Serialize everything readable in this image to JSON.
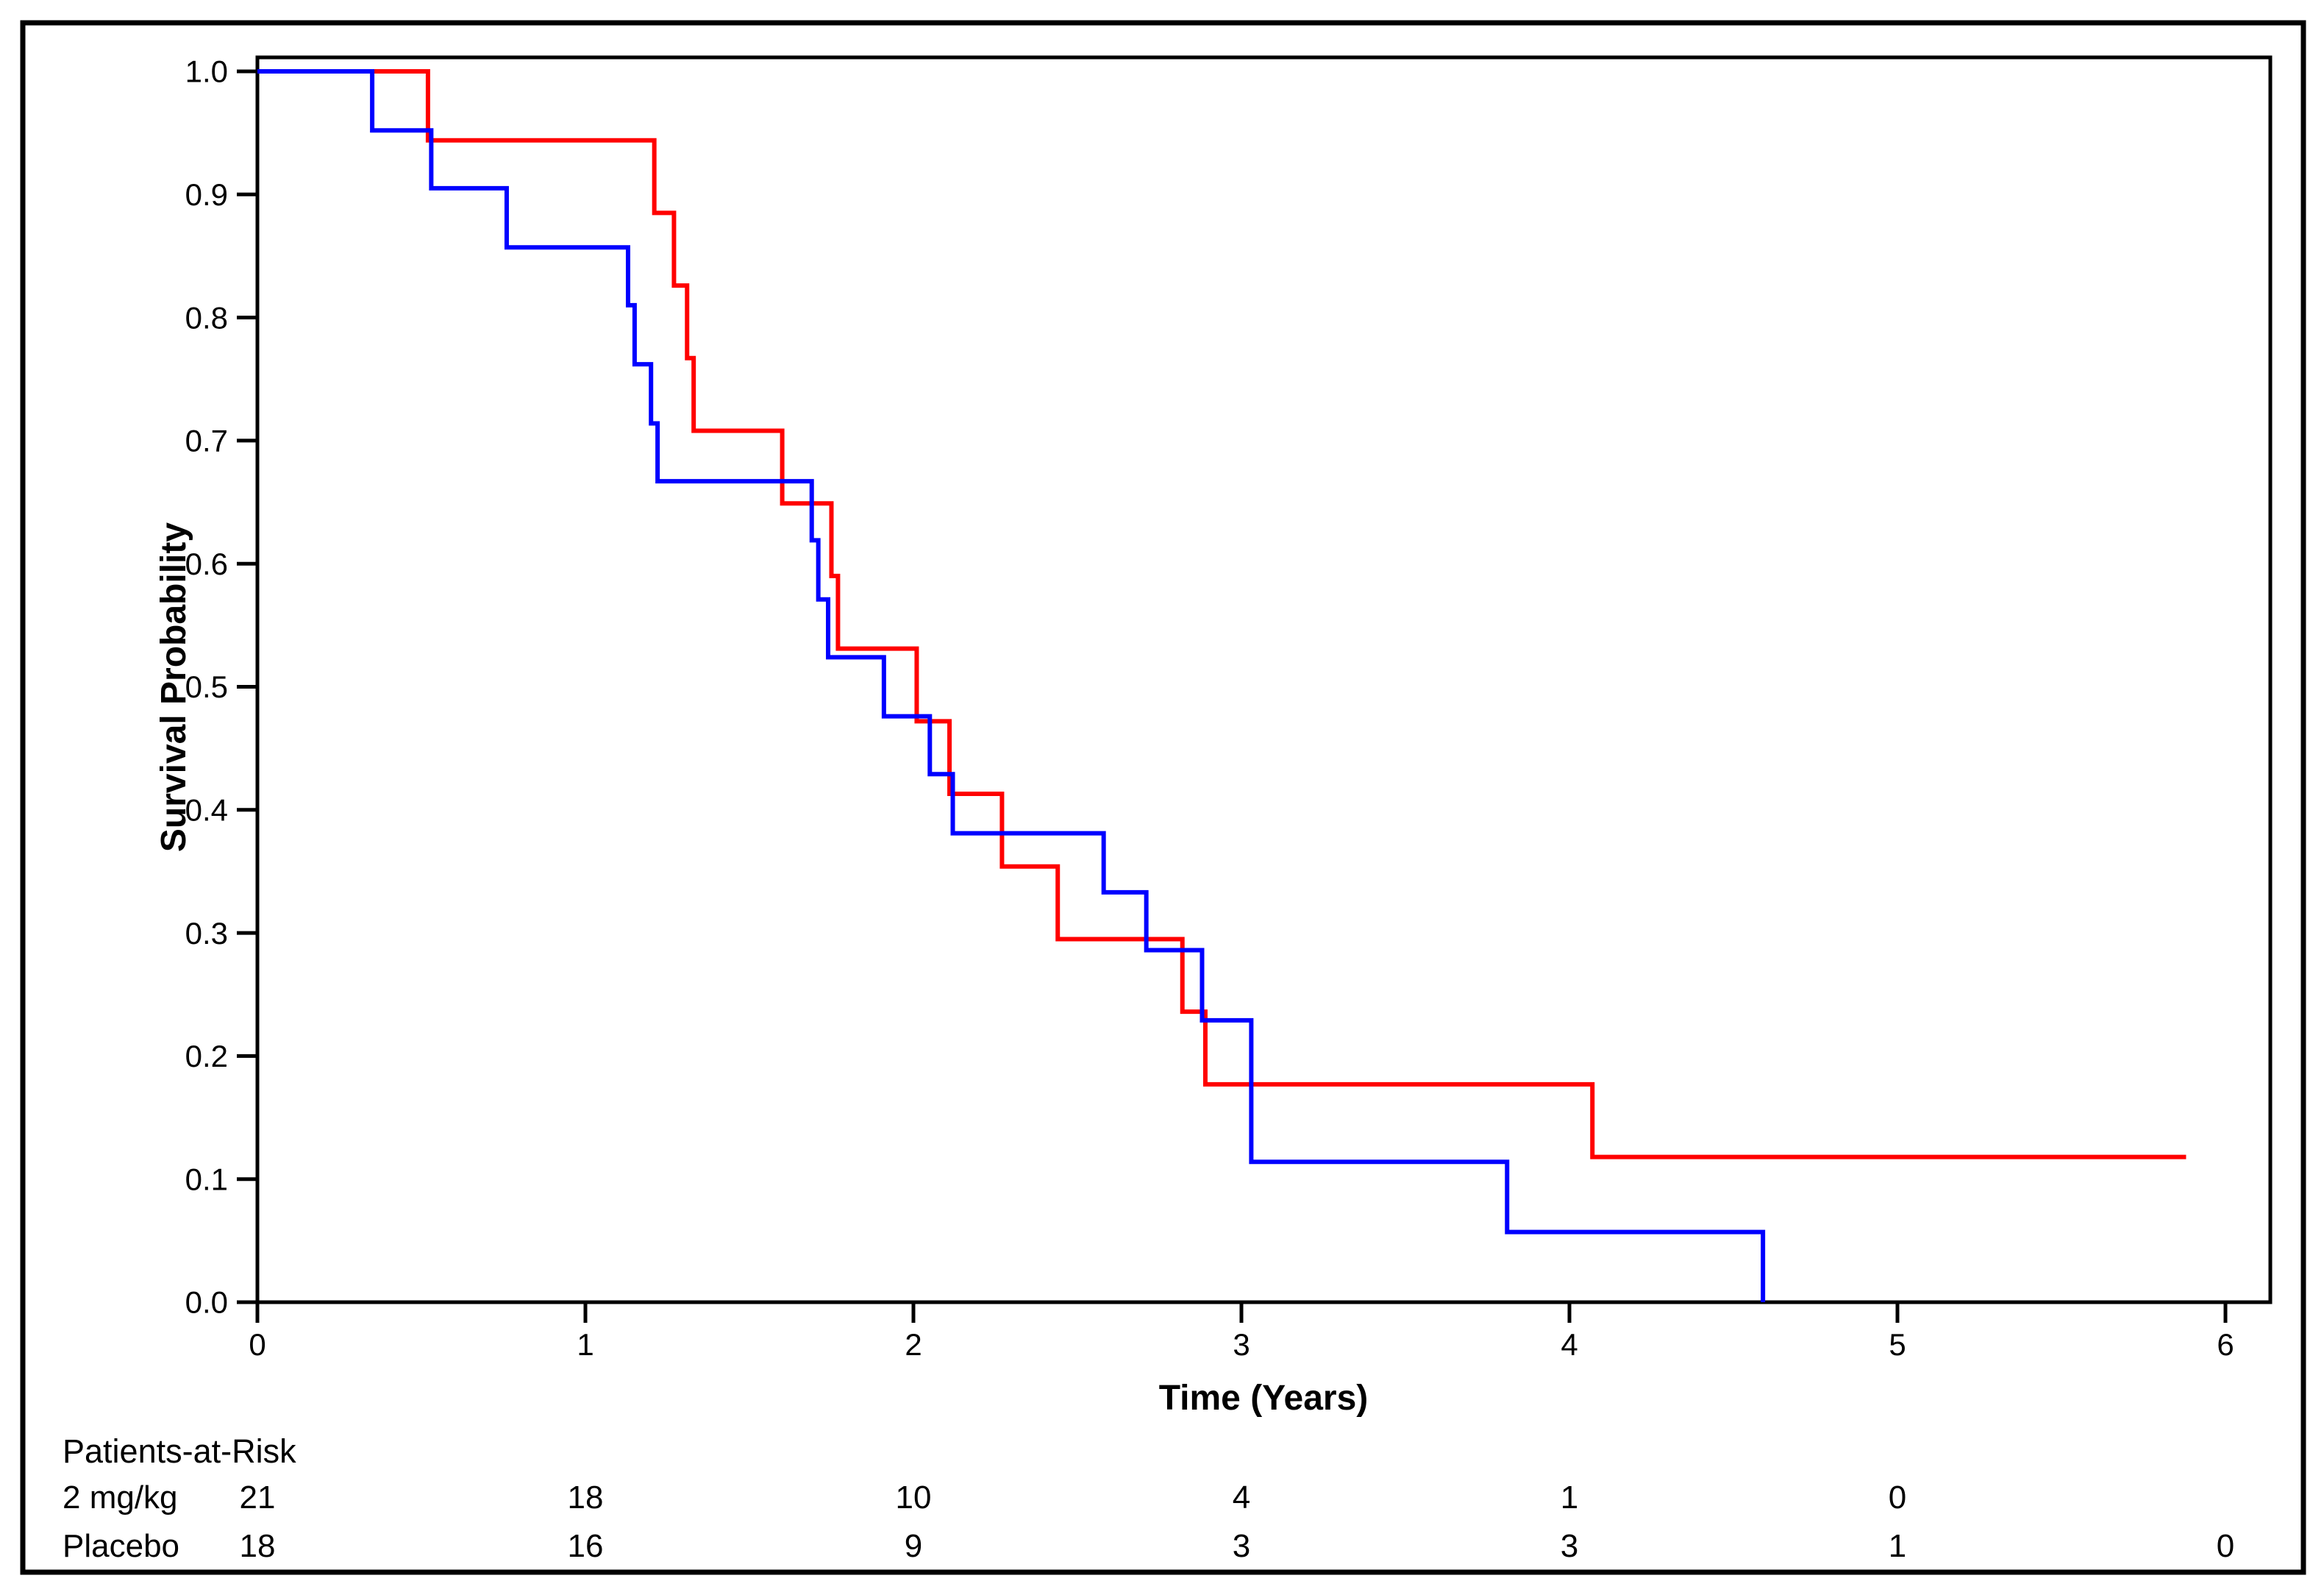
{
  "figure": {
    "background": "#ffffff",
    "border_color": "#000000",
    "axis_color": "#000000"
  },
  "chart_data": {
    "type": "line",
    "subtype": "kaplan-meier-step-survival",
    "title": "",
    "xlabel": "Time (Years)",
    "ylabel": "Survival Probability",
    "xlim": [
      0,
      6.14
    ],
    "ylim": [
      0.0,
      1.0
    ],
    "grid": false,
    "legend_position": "none",
    "x_ticks": [
      {
        "value": 0,
        "label": "0"
      },
      {
        "value": 1,
        "label": "1"
      },
      {
        "value": 2,
        "label": "2"
      },
      {
        "value": 3,
        "label": "3"
      },
      {
        "value": 4,
        "label": "4"
      },
      {
        "value": 5,
        "label": "5"
      },
      {
        "value": 6,
        "label": "6"
      }
    ],
    "y_ticks": [
      {
        "value": 0.0,
        "label": "0.0"
      },
      {
        "value": 0.1,
        "label": "0.1"
      },
      {
        "value": 0.2,
        "label": "0.2"
      },
      {
        "value": 0.3,
        "label": "0.3"
      },
      {
        "value": 0.4,
        "label": "0.4"
      },
      {
        "value": 0.5,
        "label": "0.5"
      },
      {
        "value": 0.6,
        "label": "0.6"
      },
      {
        "value": 0.7,
        "label": "0.7"
      },
      {
        "value": 0.8,
        "label": "0.8"
      },
      {
        "value": 0.9,
        "label": "0.9"
      },
      {
        "value": 1.0,
        "label": "1.0"
      }
    ],
    "series": [
      {
        "name": "Placebo",
        "color": "#ff0000",
        "end_time": 5.88,
        "points": [
          [
            0.0,
            1.0
          ],
          [
            0.52,
            0.944
          ],
          [
            1.21,
            0.885
          ],
          [
            1.27,
            0.826
          ],
          [
            1.31,
            0.767
          ],
          [
            1.33,
            0.708
          ],
          [
            1.6,
            0.649
          ],
          [
            1.75,
            0.59
          ],
          [
            1.77,
            0.531
          ],
          [
            2.01,
            0.472
          ],
          [
            2.11,
            0.413
          ],
          [
            2.27,
            0.354
          ],
          [
            2.44,
            0.295
          ],
          [
            2.82,
            0.236
          ],
          [
            2.89,
            0.177
          ],
          [
            4.07,
            0.118
          ]
        ]
      },
      {
        "name": "2 mg/kg",
        "color": "#0000ff",
        "end_time": 4.59,
        "points": [
          [
            0.0,
            1.0
          ],
          [
            0.35,
            0.952
          ],
          [
            0.53,
            0.905
          ],
          [
            0.76,
            0.857
          ],
          [
            1.13,
            0.81
          ],
          [
            1.15,
            0.762
          ],
          [
            1.2,
            0.714
          ],
          [
            1.22,
            0.667
          ],
          [
            1.69,
            0.619
          ],
          [
            1.71,
            0.571
          ],
          [
            1.74,
            0.524
          ],
          [
            1.91,
            0.476
          ],
          [
            2.05,
            0.429
          ],
          [
            2.12,
            0.381
          ],
          [
            2.58,
            0.333
          ],
          [
            2.71,
            0.286
          ],
          [
            2.88,
            0.229
          ],
          [
            3.03,
            0.114
          ],
          [
            3.81,
            0.057
          ],
          [
            4.59,
            0.0
          ]
        ]
      }
    ],
    "at_risk_table": {
      "header": "Patients-at-Risk",
      "rows": [
        {
          "label": "2 mg/kg",
          "color": "#0000ff",
          "counts": [
            [
              0,
              21
            ],
            [
              1,
              18
            ],
            [
              2,
              10
            ],
            [
              3,
              4
            ],
            [
              4,
              1
            ],
            [
              5,
              0
            ]
          ]
        },
        {
          "label": "Placebo",
          "color": "#ff0000",
          "counts": [
            [
              0,
              18
            ],
            [
              1,
              16
            ],
            [
              2,
              9
            ],
            [
              3,
              3
            ],
            [
              4,
              3
            ],
            [
              5,
              1
            ],
            [
              6,
              0
            ]
          ]
        }
      ]
    }
  }
}
